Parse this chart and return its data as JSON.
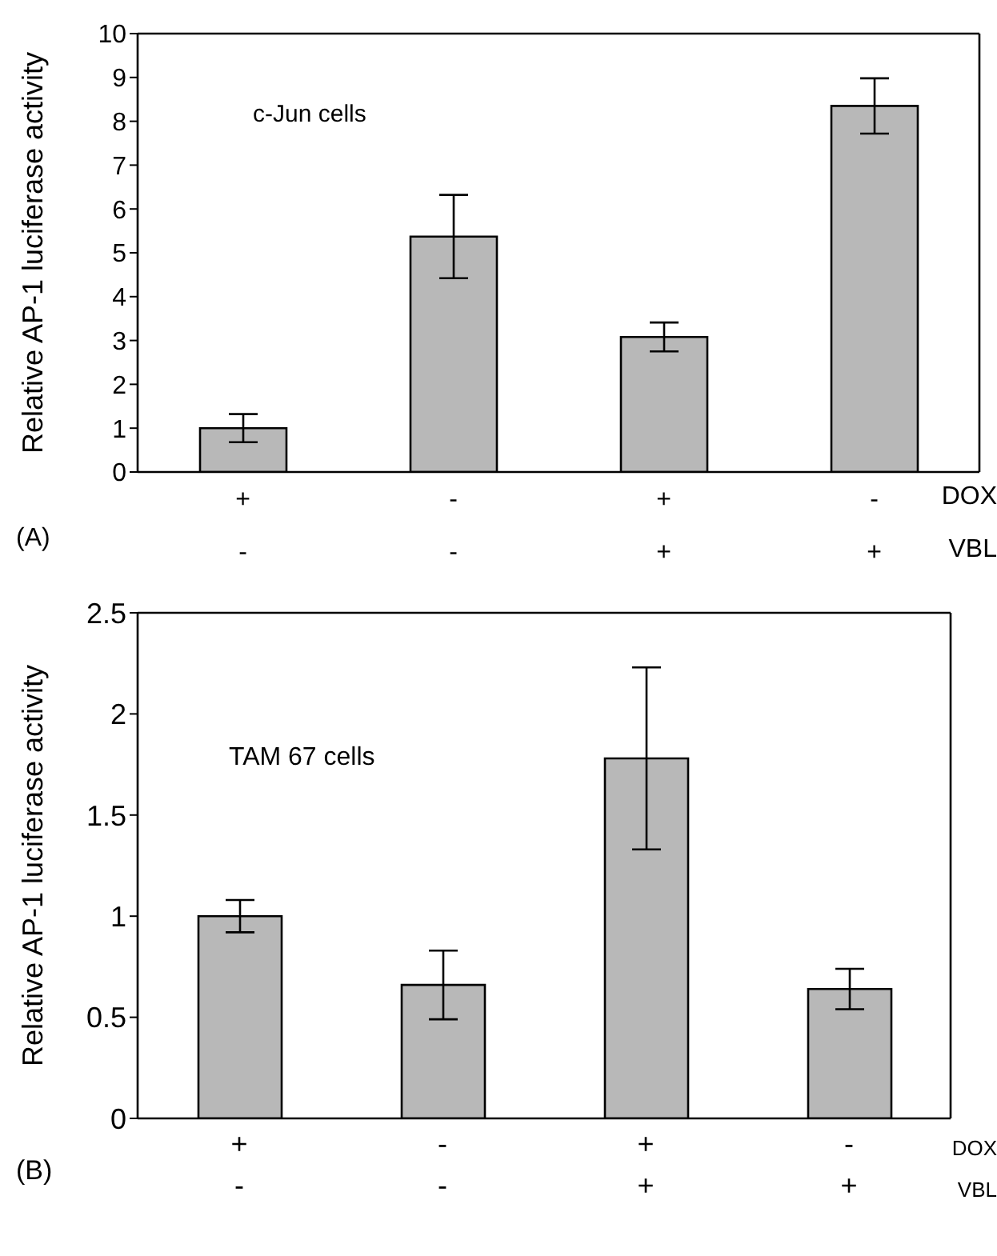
{
  "chart_data": [
    {
      "type": "bar",
      "ylabel": "Relative AP-1 luciferase activity",
      "categories": [
        "+\n-",
        "-\n-",
        "+\n+",
        "-\n+"
      ],
      "values": [
        1.0,
        5.37,
        3.08,
        8.35
      ],
      "errors": [
        0.32,
        0.95,
        0.33,
        0.63
      ],
      "color": "#b8b8b8",
      "ylim": [
        0,
        10
      ],
      "yticks": [
        0,
        1,
        2,
        3,
        4,
        5,
        6,
        7,
        8,
        9,
        10
      ],
      "grid": false,
      "legend": false,
      "annotations": [
        "c-Jun cells",
        "DOX",
        "VBL",
        "(A)"
      ]
    },
    {
      "type": "bar",
      "ylabel": "Relative AP-1 luciferase activity",
      "categories": [
        "+\n-",
        "-\n-",
        "+\n+",
        "-\n+"
      ],
      "values": [
        1.0,
        0.66,
        1.78,
        0.64
      ],
      "errors": [
        0.08,
        0.17,
        0.45,
        0.1
      ],
      "color": "#b8b8b8",
      "ylim": [
        0,
        2.5
      ],
      "yticks": [
        0,
        0.5,
        1,
        1.5,
        2,
        2.5
      ],
      "grid": false,
      "legend": false,
      "annotations": [
        "TAM 67 cells",
        "DOX",
        "VBL",
        "(B)"
      ]
    }
  ]
}
